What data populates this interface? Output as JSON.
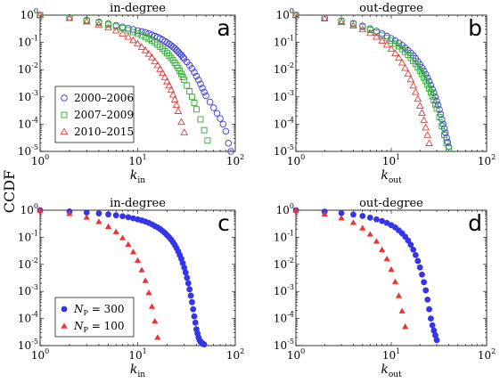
{
  "figure": {
    "shared_ylabel": "CCDF"
  },
  "chart_data": [
    {
      "id": "a",
      "type": "scatter",
      "title": "in-degree",
      "panel_letter": "a",
      "xlabel": {
        "main": "k",
        "sub": "in"
      },
      "ylabel": "CCDF",
      "xscale": "log",
      "yscale": "log",
      "xlim": [
        1,
        100
      ],
      "ylim": [
        1e-05,
        1
      ],
      "x_tick_labels": [
        {
          "base": "10",
          "exp": "0"
        },
        {
          "base": "10",
          "exp": "1"
        },
        {
          "base": "10",
          "exp": "2"
        }
      ],
      "y_tick_labels": [
        {
          "base": "10",
          "exp": "0"
        },
        {
          "base": "10",
          "exp": "-1"
        },
        {
          "base": "10",
          "exp": "-2"
        },
        {
          "base": "10",
          "exp": "-3"
        },
        {
          "base": "10",
          "exp": "-4"
        },
        {
          "base": "10",
          "exp": "-5"
        }
      ],
      "legend": {
        "position": "lower-left"
      },
      "series": [
        {
          "name": "2000–2006",
          "marker": "circle",
          "color": "#3b3bd6",
          "x": [
            1,
            2,
            3,
            4,
            5,
            6,
            7,
            8,
            9,
            10,
            11,
            12,
            13,
            14,
            15,
            16,
            17,
            18,
            19,
            20,
            21,
            22,
            23,
            24,
            25,
            26,
            27,
            28,
            29,
            30,
            32,
            34,
            36,
            38,
            40,
            42,
            44,
            46,
            48,
            50,
            55,
            60,
            65,
            70,
            75,
            80,
            85,
            90
          ],
          "y": [
            1,
            0.82,
            0.65,
            0.56,
            0.49,
            0.42,
            0.37,
            0.33,
            0.3,
            0.27,
            0.25,
            0.23,
            0.21,
            0.19,
            0.17,
            0.155,
            0.14,
            0.125,
            0.11,
            0.098,
            0.087,
            0.077,
            0.068,
            0.06,
            0.052,
            0.045,
            0.039,
            0.034,
            0.029,
            0.025,
            0.019,
            0.0145,
            0.011,
            0.008,
            0.0058,
            0.0042,
            0.003,
            0.0021,
            0.0015,
            0.0011,
            0.00065,
            0.0004,
            0.00025,
            0.00016,
            0.0001,
            5.5e-05,
            2e-05,
            1e-05
          ]
        },
        {
          "name": "2007–2009",
          "marker": "square",
          "color": "#2fa82f",
          "x": [
            1,
            2,
            3,
            4,
            5,
            6,
            7,
            8,
            9,
            10,
            11,
            12,
            13,
            14,
            15,
            16,
            17,
            18,
            19,
            20,
            21,
            22,
            23,
            24,
            25,
            26,
            27,
            28,
            29,
            30,
            32,
            34,
            36,
            38,
            40,
            44,
            48,
            52
          ],
          "y": [
            1,
            0.8,
            0.62,
            0.52,
            0.44,
            0.38,
            0.33,
            0.28,
            0.24,
            0.21,
            0.18,
            0.155,
            0.135,
            0.115,
            0.098,
            0.083,
            0.07,
            0.058,
            0.048,
            0.04,
            0.033,
            0.027,
            0.022,
            0.018,
            0.0145,
            0.0115,
            0.009,
            0.007,
            0.0054,
            0.0042,
            0.0026,
            0.0016,
            0.001,
            0.0006,
            0.00035,
            0.00015,
            6e-05,
            2.5e-05
          ]
        },
        {
          "name": "2010–2015",
          "marker": "triangle",
          "color": "#e33b3b",
          "x": [
            1,
            2,
            3,
            4,
            5,
            6,
            7,
            8,
            9,
            10,
            11,
            12,
            13,
            14,
            15,
            16,
            17,
            18,
            19,
            20,
            21,
            22,
            23,
            24,
            25,
            26,
            28,
            30
          ],
          "y": [
            1,
            0.78,
            0.58,
            0.45,
            0.35,
            0.27,
            0.21,
            0.16,
            0.12,
            0.09,
            0.068,
            0.051,
            0.038,
            0.028,
            0.02,
            0.0145,
            0.0105,
            0.0075,
            0.0053,
            0.0037,
            0.0026,
            0.0018,
            0.0012,
            0.0008,
            0.0005,
            0.0003,
            0.00012,
            5e-05
          ]
        }
      ]
    },
    {
      "id": "b",
      "type": "scatter",
      "title": "out-degree",
      "panel_letter": "b",
      "xlabel": {
        "main": "k",
        "sub": "out"
      },
      "xscale": "log",
      "yscale": "log",
      "xlim": [
        1,
        100
      ],
      "ylim": [
        1e-05,
        1
      ],
      "x_tick_labels": [
        {
          "base": "10",
          "exp": "0"
        },
        {
          "base": "10",
          "exp": "1"
        },
        {
          "base": "10",
          "exp": "2"
        }
      ],
      "y_tick_labels": [
        {
          "base": "10",
          "exp": "0"
        },
        {
          "base": "10",
          "exp": "-1"
        },
        {
          "base": "10",
          "exp": "-2"
        },
        {
          "base": "10",
          "exp": "-3"
        },
        {
          "base": "10",
          "exp": "-4"
        },
        {
          "base": "10",
          "exp": "-5"
        }
      ],
      "series": [
        {
          "name": "2000–2006",
          "marker": "circle",
          "color": "#3b3bd6",
          "x": [
            1,
            2,
            3,
            4,
            5,
            6,
            7,
            8,
            9,
            10,
            11,
            12,
            13,
            14,
            15,
            16,
            17,
            18,
            19,
            20,
            21,
            22,
            23,
            24,
            25,
            26,
            27,
            28,
            29,
            30,
            31,
            32,
            33,
            34,
            35,
            36,
            37,
            38,
            39,
            40
          ],
          "y": [
            1,
            0.8,
            0.62,
            0.5,
            0.4,
            0.32,
            0.26,
            0.21,
            0.17,
            0.14,
            0.115,
            0.095,
            0.078,
            0.063,
            0.051,
            0.041,
            0.033,
            0.026,
            0.02,
            0.0155,
            0.0118,
            0.009,
            0.0067,
            0.005,
            0.0037,
            0.0027,
            0.0019,
            0.0014,
            0.001,
            0.0007,
            0.0005,
            0.00034,
            0.00023,
            0.00015,
            0.0001,
            7e-05,
            4.8e-05,
            3.2e-05,
            2.2e-05,
            1.5e-05
          ]
        },
        {
          "name": "2007–2009",
          "marker": "square",
          "color": "#2fa82f",
          "x": [
            1,
            2,
            3,
            4,
            5,
            6,
            7,
            8,
            9,
            10,
            11,
            12,
            13,
            14,
            15,
            16,
            17,
            18,
            19,
            20,
            21,
            22,
            23,
            24,
            25,
            26,
            27,
            28,
            29,
            30,
            32,
            34,
            36,
            38,
            40
          ],
          "y": [
            1,
            0.78,
            0.6,
            0.47,
            0.37,
            0.29,
            0.23,
            0.18,
            0.145,
            0.115,
            0.09,
            0.072,
            0.057,
            0.045,
            0.035,
            0.027,
            0.021,
            0.016,
            0.0122,
            0.0092,
            0.0069,
            0.0051,
            0.0038,
            0.0028,
            0.002,
            0.00145,
            0.00105,
            0.00075,
            0.00053,
            0.00037,
            0.00018,
            8.5e-05,
            4e-05,
            2e-05,
            1.3e-05
          ]
        },
        {
          "name": "2010–2015",
          "marker": "triangle",
          "color": "#e33b3b",
          "x": [
            1,
            2,
            3,
            4,
            5,
            6,
            7,
            8,
            9,
            10,
            11,
            12,
            13,
            14,
            15,
            16,
            17,
            18,
            19,
            20,
            21,
            22,
            23,
            24,
            25
          ],
          "y": [
            1,
            0.75,
            0.55,
            0.41,
            0.3,
            0.22,
            0.16,
            0.115,
            0.082,
            0.058,
            0.04,
            0.027,
            0.018,
            0.0115,
            0.0072,
            0.0044,
            0.0026,
            0.0015,
            0.00085,
            0.00047,
            0.00026,
            0.00014,
            7.5e-05,
            4e-05,
            2e-05
          ]
        }
      ]
    },
    {
      "id": "c",
      "type": "scatter",
      "title": "in-degree",
      "panel_letter": "c",
      "xlabel": {
        "main": "k",
        "sub": "in"
      },
      "xscale": "log",
      "yscale": "log",
      "xlim": [
        1,
        100
      ],
      "ylim": [
        1e-05,
        1
      ],
      "x_tick_labels": [
        {
          "base": "10",
          "exp": "0"
        },
        {
          "base": "10",
          "exp": "1"
        },
        {
          "base": "10",
          "exp": "2"
        }
      ],
      "y_tick_labels": [
        {
          "base": "10",
          "exp": "0"
        },
        {
          "base": "10",
          "exp": "-1"
        },
        {
          "base": "10",
          "exp": "-2"
        },
        {
          "base": "10",
          "exp": "-3"
        },
        {
          "base": "10",
          "exp": "-4"
        },
        {
          "base": "10",
          "exp": "-5"
        }
      ],
      "legend": {
        "position": "lower-left"
      },
      "series": [
        {
          "name_main": "N",
          "name_sub": "P",
          "name_rest": " = 300",
          "marker": "filled-circle",
          "color": "#3535e8",
          "x": [
            1,
            2,
            3,
            4,
            5,
            6,
            7,
            8,
            9,
            10,
            11,
            12,
            13,
            14,
            15,
            16,
            17,
            18,
            19,
            20,
            21,
            22,
            23,
            24,
            25,
            26,
            27,
            28,
            29,
            30,
            31,
            32,
            33,
            34,
            35,
            36,
            37,
            38,
            39,
            40,
            41,
            42,
            43,
            44,
            45,
            46,
            47,
            48
          ],
          "y": [
            1,
            0.9,
            0.82,
            0.76,
            0.7,
            0.65,
            0.6,
            0.55,
            0.5,
            0.46,
            0.42,
            0.38,
            0.34,
            0.3,
            0.26,
            0.23,
            0.2,
            0.17,
            0.145,
            0.12,
            0.1,
            0.082,
            0.066,
            0.052,
            0.04,
            0.03,
            0.022,
            0.016,
            0.011,
            0.0075,
            0.005,
            0.0032,
            0.002,
            0.0012,
            0.0007,
            0.0004,
            0.00022,
            0.00012,
            7e-05,
            4e-05,
            2.8e-05,
            2e-05,
            1.6e-05,
            1.4e-05,
            1.3e-05,
            1.2e-05,
            1.15e-05,
            1.1e-05
          ]
        },
        {
          "name_main": "N",
          "name_sub": "P",
          "name_rest": " = 100",
          "marker": "filled-triangle",
          "color": "#ee3333",
          "x": [
            1,
            2,
            3,
            4,
            5,
            6,
            7,
            8,
            9,
            10,
            11,
            12,
            13,
            14,
            15,
            16
          ],
          "y": [
            1,
            0.75,
            0.55,
            0.38,
            0.25,
            0.16,
            0.095,
            0.055,
            0.029,
            0.014,
            0.0062,
            0.0025,
            0.0009,
            0.00028,
            8e-05,
            2e-05
          ]
        }
      ]
    },
    {
      "id": "d",
      "type": "scatter",
      "title": "out-degree",
      "panel_letter": "d",
      "xlabel": {
        "main": "k",
        "sub": "out"
      },
      "xscale": "log",
      "yscale": "log",
      "xlim": [
        1,
        100
      ],
      "ylim": [
        1e-05,
        1
      ],
      "x_tick_labels": [
        {
          "base": "10",
          "exp": "0"
        },
        {
          "base": "10",
          "exp": "1"
        },
        {
          "base": "10",
          "exp": "2"
        }
      ],
      "y_tick_labels": [
        {
          "base": "10",
          "exp": "0"
        },
        {
          "base": "10",
          "exp": "-1"
        },
        {
          "base": "10",
          "exp": "-2"
        },
        {
          "base": "10",
          "exp": "-3"
        },
        {
          "base": "10",
          "exp": "-4"
        },
        {
          "base": "10",
          "exp": "-5"
        }
      ],
      "series": [
        {
          "name_main": "N",
          "name_sub": "P",
          "name_rest": " = 300",
          "marker": "filled-circle",
          "color": "#3535e8",
          "x": [
            1,
            2,
            3,
            4,
            5,
            6,
            7,
            8,
            9,
            10,
            11,
            12,
            13,
            14,
            15,
            16,
            17,
            18,
            19,
            20,
            21,
            22,
            23,
            24,
            25,
            26,
            27,
            28,
            29,
            30
          ],
          "y": [
            1,
            0.88,
            0.78,
            0.69,
            0.61,
            0.53,
            0.46,
            0.4,
            0.34,
            0.28,
            0.23,
            0.18,
            0.14,
            0.105,
            0.076,
            0.053,
            0.035,
            0.022,
            0.0133,
            0.0077,
            0.0042,
            0.0022,
            0.0011,
            0.0005,
            0.00022,
            0.0001,
            5.6e-05,
            3.6e-05,
            2.4e-05,
            1.6e-05
          ]
        },
        {
          "name_main": "N",
          "name_sub": "P",
          "name_rest": " = 100",
          "marker": "filled-triangle",
          "color": "#ee3333",
          "x": [
            1,
            2,
            3,
            4,
            5,
            6,
            7,
            8,
            9,
            10,
            11,
            12,
            13,
            14
          ],
          "y": [
            1,
            0.72,
            0.52,
            0.35,
            0.22,
            0.13,
            0.071,
            0.035,
            0.016,
            0.0065,
            0.0023,
            0.0007,
            0.00019,
            5e-05
          ]
        }
      ]
    }
  ]
}
